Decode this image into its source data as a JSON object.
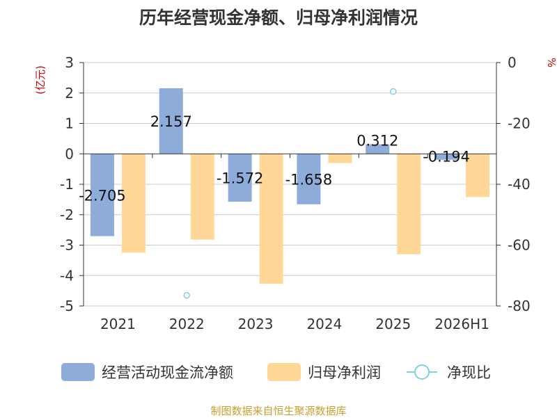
{
  "chart_data": {
    "type": "bar",
    "title": "历年经营现金净额、归母净利润情况",
    "left_axis_unit": "(亿元)",
    "right_axis_unit": "%",
    "categories": [
      "2021",
      "2022",
      "2023",
      "2024",
      "2025",
      "2026H1"
    ],
    "ylim": [
      -5,
      3
    ],
    "yticks": [
      3,
      2,
      1,
      0,
      -1,
      -2,
      -3,
      -4,
      -5
    ],
    "y2lim": [
      -80,
      0
    ],
    "y2ticks": [
      0,
      -20,
      -40,
      -60,
      -80
    ],
    "grid": true,
    "legend_position": "bottom",
    "series": [
      {
        "name": "经营活动现金流净额",
        "type": "bar",
        "axis": "left",
        "color": "#8eacd9",
        "values": [
          -2.705,
          2.157,
          -1.572,
          -1.658,
          0.312,
          -0.194
        ],
        "labels": [
          "-2.705",
          "2.157",
          "-1.572",
          "-1.658",
          "0.312",
          "-0.194"
        ]
      },
      {
        "name": "归母净利润",
        "type": "bar",
        "axis": "left",
        "color": "#ffd898",
        "values": [
          -3.25,
          -2.82,
          -4.27,
          -0.3,
          -3.3,
          -1.42
        ]
      },
      {
        "name": "净现比",
        "type": "scatter",
        "axis": "right",
        "color": "#7fd0dc",
        "values": [
          null,
          -76.5,
          null,
          null,
          -9.5,
          null
        ]
      }
    ],
    "source": "制图数据来自恒生聚源数据库"
  }
}
